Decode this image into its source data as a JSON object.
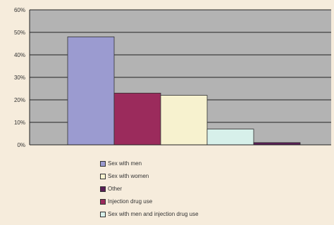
{
  "chart_data": {
    "type": "bar",
    "title": "",
    "xlabel": "",
    "ylabel": "",
    "ylim": [
      0,
      60
    ],
    "yticks": [
      0,
      10,
      20,
      30,
      40,
      50,
      60
    ],
    "yticks_labels": [
      "0%",
      "10%",
      "20%",
      "30%",
      "40%",
      "50%",
      "60%"
    ],
    "grid": true,
    "legend_position": "bottom",
    "series": [
      {
        "name": "Sex with men",
        "value": 48,
        "color": "#9b9bd0"
      },
      {
        "name": "Injection drug use",
        "value": 23,
        "color": "#9b2b5c"
      },
      {
        "name": "Sex with women",
        "value": 22,
        "color": "#f7f2cf"
      },
      {
        "name": "Sex with men and injection drug use",
        "value": 7,
        "color": "#d7f0ea"
      },
      {
        "name": "Other",
        "value": 1,
        "color": "#5a1e56"
      }
    ],
    "legend_order": [
      "Sex with men",
      "Sex with women",
      "Other",
      "Injection drug use",
      "Sex with men and injection drug use"
    ]
  },
  "colors": {
    "page_background": "#f6ecdc",
    "plot_background": "#b3b3b3",
    "gridline": "#222222"
  }
}
